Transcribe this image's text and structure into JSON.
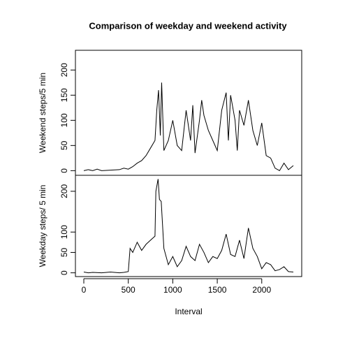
{
  "chart_data": [
    {
      "type": "line",
      "title": "Comparison of weekday and weekend activity",
      "ylabel": "Weekend steps/5 min",
      "color": "#000000",
      "x": [
        0,
        50,
        100,
        150,
        200,
        300,
        400,
        450,
        500,
        550,
        600,
        650,
        700,
        750,
        800,
        820,
        840,
        860,
        875,
        900,
        950,
        1000,
        1050,
        1100,
        1150,
        1200,
        1225,
        1250,
        1300,
        1325,
        1350,
        1400,
        1450,
        1500,
        1550,
        1600,
        1625,
        1650,
        1700,
        1725,
        1750,
        1800,
        1850,
        1900,
        1950,
        2000,
        2050,
        2100,
        2150,
        2200,
        2250,
        2300,
        2355
      ],
      "values": [
        0,
        2,
        0,
        3,
        0,
        1,
        2,
        5,
        3,
        8,
        15,
        20,
        30,
        45,
        60,
        120,
        160,
        70,
        175,
        40,
        60,
        100,
        50,
        40,
        120,
        60,
        130,
        35,
        100,
        140,
        110,
        80,
        60,
        40,
        120,
        155,
        60,
        150,
        100,
        40,
        120,
        90,
        140,
        80,
        50,
        95,
        30,
        25,
        5,
        0,
        15,
        2,
        10
      ],
      "xlim": [
        -94.2,
        2449.2
      ],
      "ylim": [
        -9.2,
        239.2
      ],
      "yticks": [
        0,
        50,
        100,
        150,
        200
      ]
    },
    {
      "type": "line",
      "ylabel": "Weekday steps/ 5 min",
      "xlabel": "Interval",
      "color": "#000000",
      "x": [
        0,
        50,
        100,
        200,
        300,
        400,
        450,
        500,
        520,
        550,
        600,
        650,
        700,
        750,
        800,
        810,
        835,
        850,
        870,
        900,
        950,
        1000,
        1050,
        1100,
        1150,
        1200,
        1250,
        1300,
        1350,
        1400,
        1450,
        1500,
        1550,
        1600,
        1650,
        1700,
        1750,
        1800,
        1850,
        1900,
        1950,
        2000,
        2050,
        2100,
        2150,
        2200,
        2250,
        2300,
        2355
      ],
      "values": [
        2,
        0,
        1,
        0,
        2,
        0,
        1,
        3,
        60,
        50,
        75,
        55,
        70,
        80,
        90,
        200,
        230,
        180,
        175,
        60,
        20,
        40,
        15,
        30,
        65,
        40,
        30,
        70,
        50,
        25,
        40,
        35,
        55,
        95,
        45,
        40,
        80,
        35,
        110,
        60,
        40,
        10,
        25,
        20,
        5,
        8,
        15,
        3,
        2
      ],
      "xlim": [
        -94.2,
        2449.2
      ],
      "ylim": [
        -9.2,
        239.2
      ],
      "yticks": [
        0,
        50,
        100,
        200
      ],
      "xticks": [
        0,
        500,
        1000,
        1500,
        2000
      ]
    }
  ]
}
